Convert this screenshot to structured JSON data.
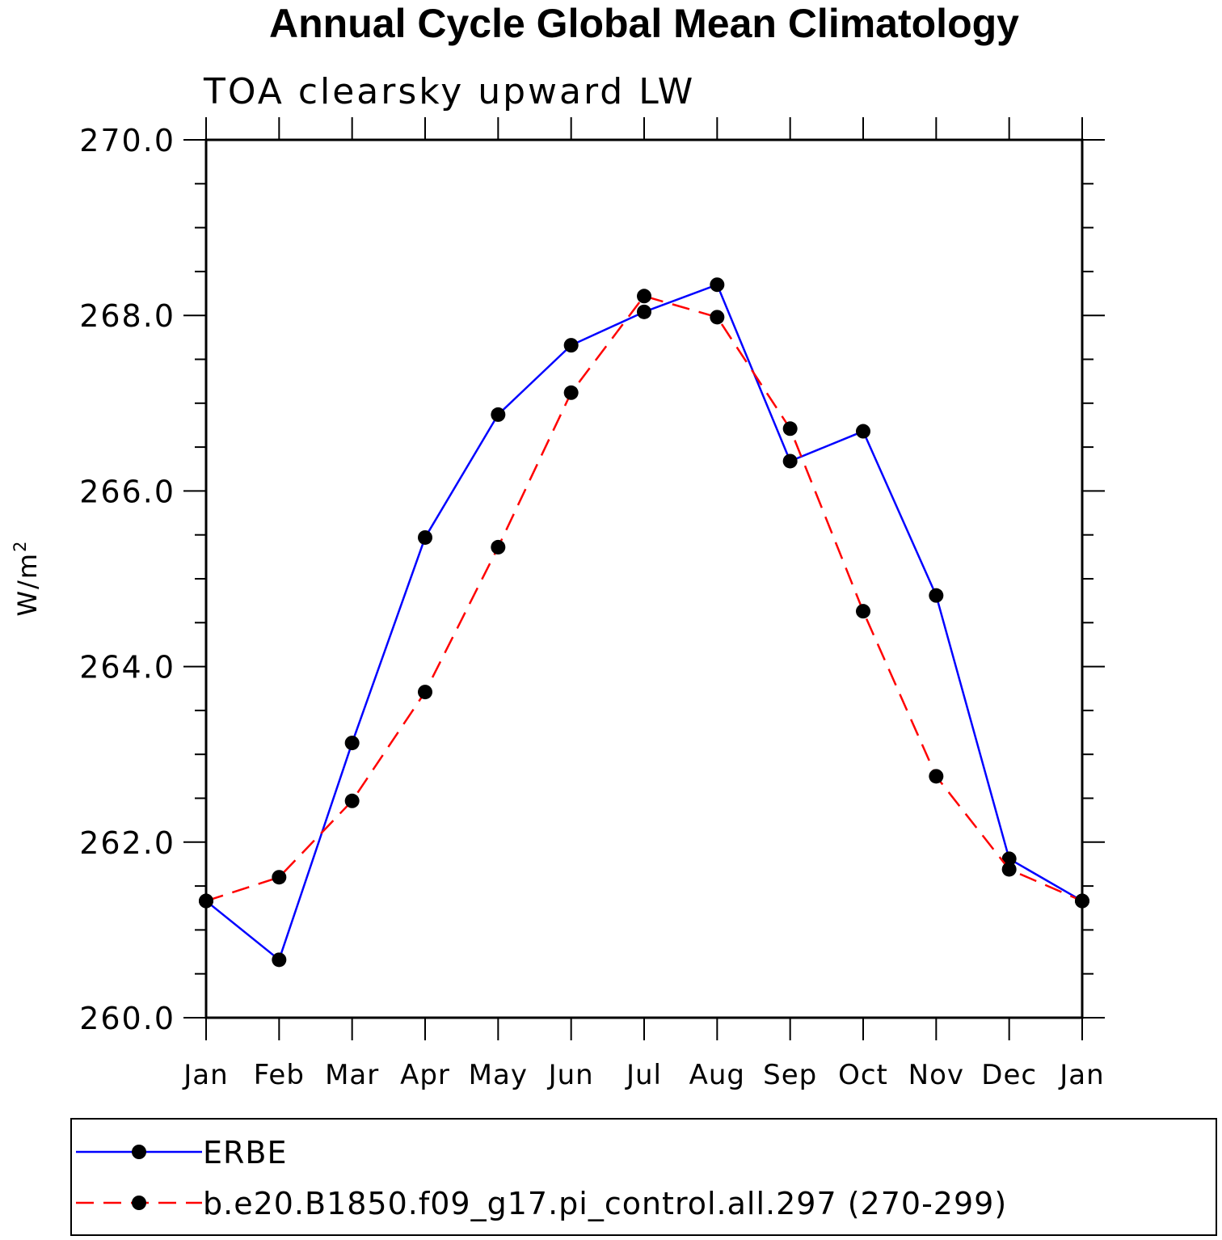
{
  "chart_data": {
    "type": "line",
    "title": "Annual Cycle Global Mean Climatology",
    "subtitle": "TOA clearsky upward LW",
    "ylabel": "W/m",
    "ylabel_superscript": "2",
    "xlabel": "",
    "categories": [
      "Jan",
      "Feb",
      "Mar",
      "Apr",
      "May",
      "Jun",
      "Jul",
      "Aug",
      "Sep",
      "Oct",
      "Nov",
      "Dec",
      "Jan"
    ],
    "ylim": [
      260.0,
      270.0
    ],
    "yticks": [
      "260.0",
      "262.0",
      "264.0",
      "266.0",
      "268.0",
      "270.0"
    ],
    "grid": false,
    "legend_position": "bottom",
    "series": [
      {
        "name": "ERBE",
        "color": "#0000ff",
        "line_style": "solid",
        "marker": "filled-circle",
        "values": [
          261.33,
          260.66,
          263.13,
          265.47,
          266.87,
          267.66,
          268.04,
          268.35,
          266.34,
          266.68,
          264.81,
          261.81,
          261.33
        ]
      },
      {
        "name": "b.e20.B1850.f09_g17.pi_control.all.297 (270-299)",
        "color": "#ff0000",
        "line_style": "dashed",
        "marker": "filled-circle",
        "values": [
          261.33,
          261.6,
          262.47,
          263.71,
          265.36,
          267.12,
          268.22,
          267.98,
          266.71,
          264.63,
          262.75,
          261.69,
          261.33
        ]
      }
    ]
  }
}
